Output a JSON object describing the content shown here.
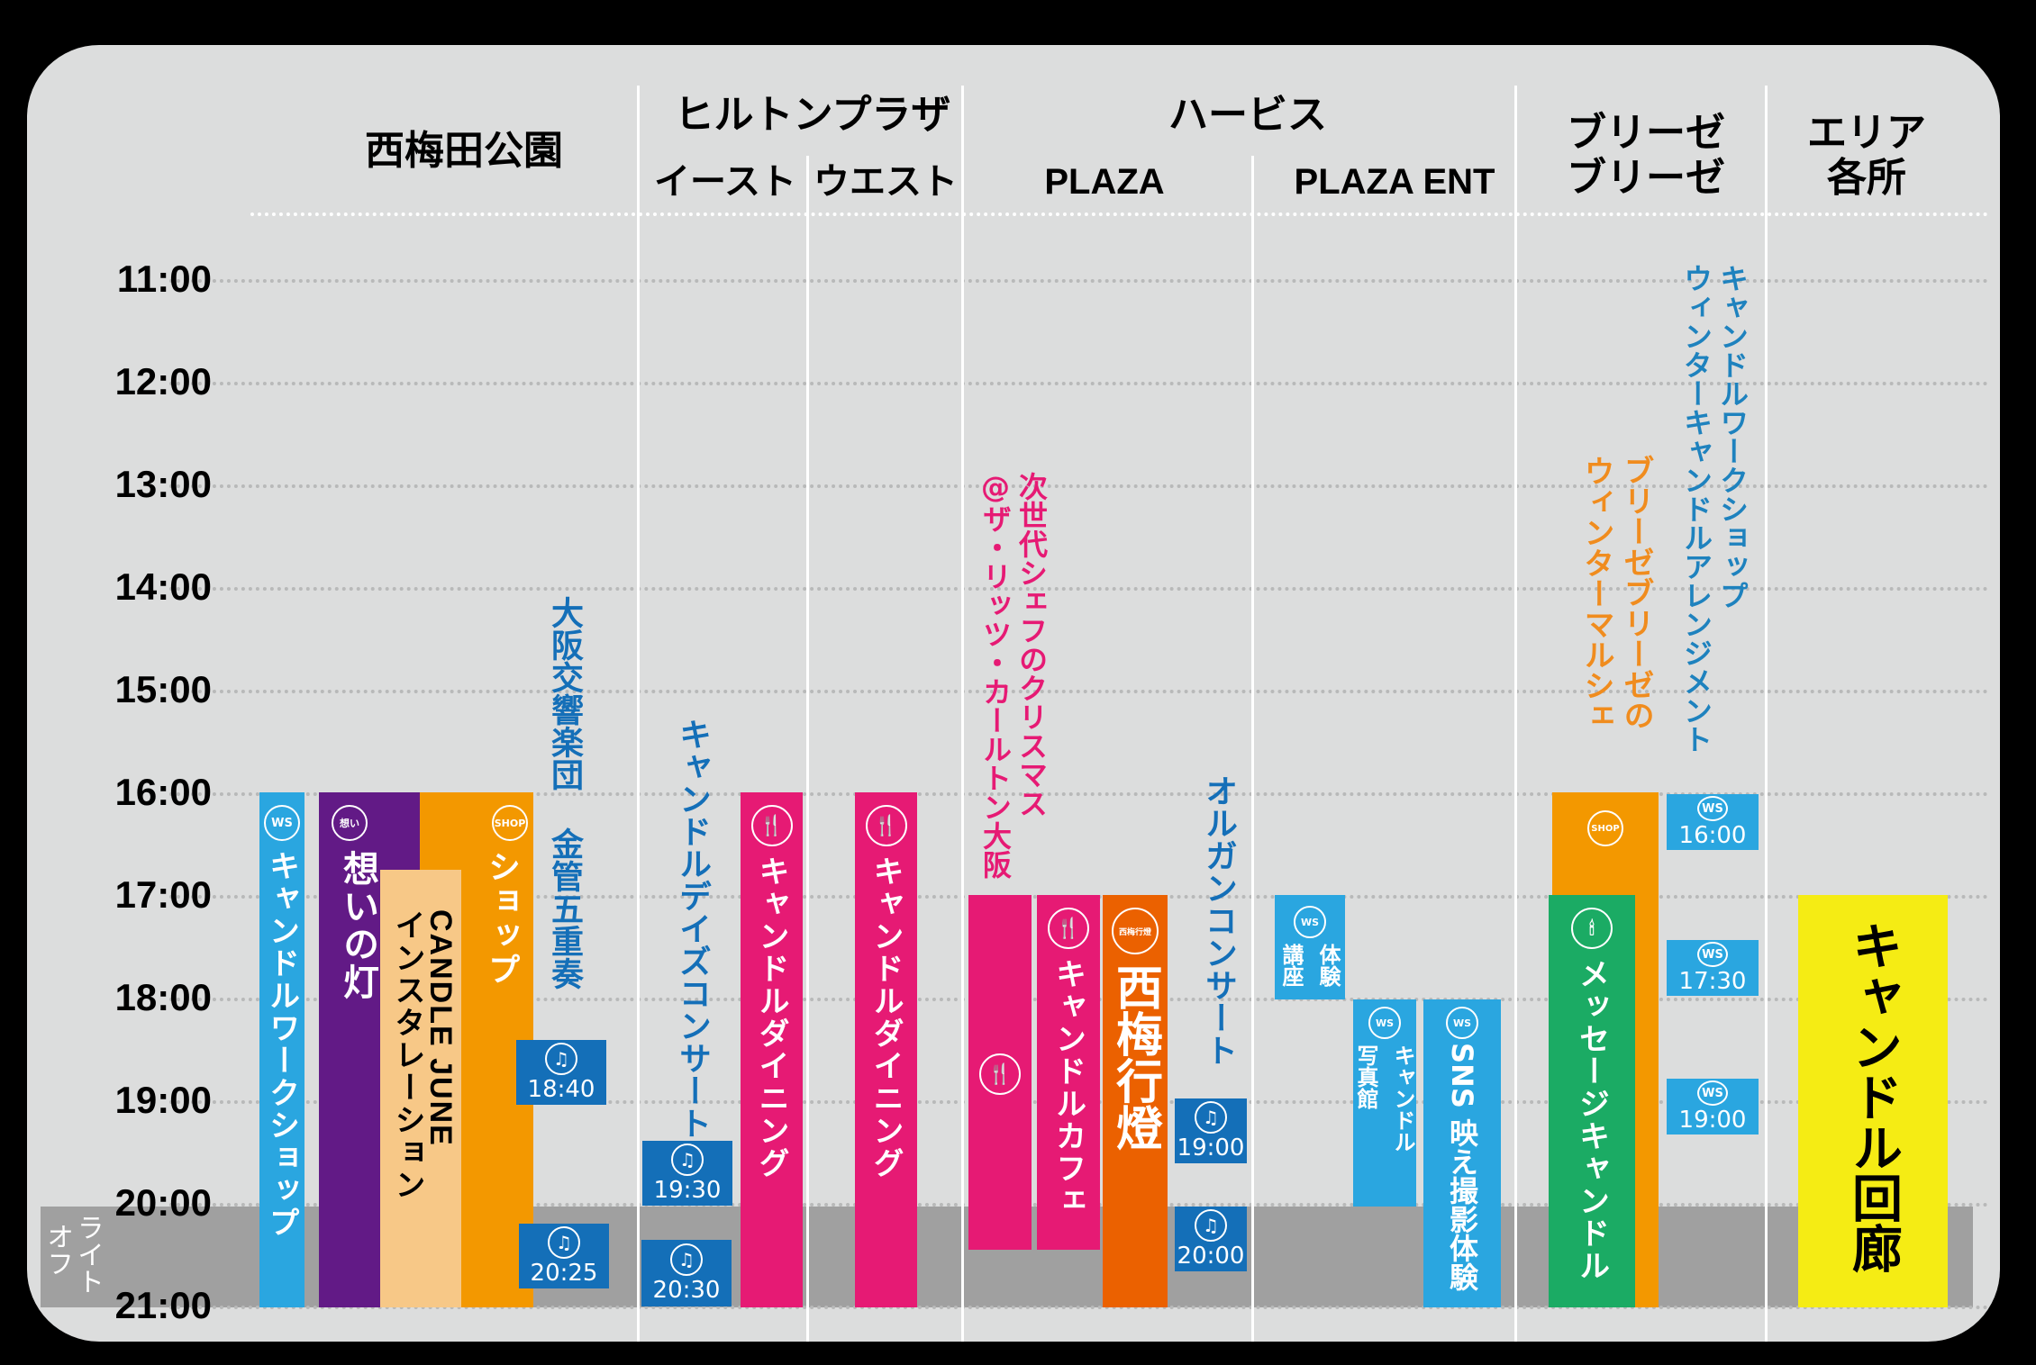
{
  "colors": {
    "background": "#000000",
    "panel": "#dcdddd",
    "light_off_band": "#a0a0a0",
    "workshop_blue": "#2aa6e0",
    "music_blue": "#146fb8",
    "dining_pink": "#e61a74",
    "purple": "#621a86",
    "shop_orange": "#f39800",
    "peach": "#f7c887",
    "lantern_orange": "#eb6100",
    "green": "#1bab64",
    "yellow": "#f5ec14",
    "label_pink": "#e61a74",
    "label_blue": "#146fb8",
    "label_orange": "#f08c1e",
    "label_steel_blue": "#1e82be"
  },
  "header": {
    "nishiumeda_park": "西梅田公園",
    "hilton_plaza": "ヒルトンプラザ",
    "hilton_east": "イースト",
    "hilton_west": "ウエスト",
    "herbis": "ハービス",
    "herbis_plaza": "PLAZA",
    "herbis_plaza_ent": "PLAZA ENT",
    "breeze_line1": "ブリーゼ",
    "breeze_line2": "ブリーゼ",
    "area_line1": "エリア",
    "area_line2": "各所"
  },
  "time_axis": [
    "11:00",
    "12:00",
    "13:00",
    "14:00",
    "15:00",
    "16:00",
    "17:00",
    "18:00",
    "19:00",
    "20:00",
    "21:00"
  ],
  "light_off": {
    "label": "ライトオフ",
    "line1": "ライト",
    "line2": "オフ",
    "start": "20:00",
    "end": "21:00"
  },
  "icons": {
    "ws": "WS",
    "shop": "SHOP",
    "music": "♫",
    "dining": "fork-spoon",
    "omoi": "想い",
    "lantern_bag": "西梅行燈",
    "candle": "candle-drop"
  },
  "events": {
    "candle_workshop_park": {
      "label": "キャンドルワークショップ",
      "icon": "WS",
      "start": "16:00",
      "end": "21:00"
    },
    "omoi_no_akari": {
      "label": "想いの灯",
      "start": "16:00",
      "end": "21:00"
    },
    "candle_june": {
      "label_line1": "CANDLE JUNE",
      "label_line2": "インスタレーション",
      "start": "16:45",
      "end": "21:00"
    },
    "shop_park": {
      "label": "ショップ",
      "icon": "SHOP",
      "start": "16:00",
      "end": "21:00"
    },
    "osaka_brass": {
      "label": "大阪交響楽団 金管五重奏",
      "times": [
        "18:40",
        "20:25"
      ]
    },
    "candle_days_concert": {
      "label": "キャンドルデイズコンサート",
      "times": [
        "19:30",
        "20:30"
      ]
    },
    "candle_dining_east": {
      "label": "キャンドルダイニング",
      "start": "16:00",
      "end": "21:00"
    },
    "candle_dining_west": {
      "label": "キャンドルダイニング",
      "start": "16:00",
      "end": "21:00"
    },
    "ritz_christmas": {
      "line1": "次世代シェフのクリスマス",
      "line2": "@ザ・リッツ・カールトン大阪",
      "start": "17:00",
      "end": "20:25"
    },
    "candle_cafe": {
      "label": "キャンドルカフェ",
      "start": "17:00",
      "end": "20:25"
    },
    "nishiume_andon": {
      "label": "西梅行燈",
      "start": "17:00",
      "end": "21:00"
    },
    "organ_concert": {
      "label": "オルガンコンサート",
      "times": [
        "19:00",
        "20:00"
      ]
    },
    "lecture": {
      "line1": "体験",
      "line2": "講座",
      "icon": "WS",
      "start": "17:00",
      "end": "18:00"
    },
    "candle_photo_studio": {
      "line1": "キャンドル",
      "line2": "写真館",
      "icon": "WS",
      "start": "18:00",
      "end": "20:00"
    },
    "sns_photo": {
      "label": "SNS 映え撮影体験",
      "icon": "WS",
      "start": "18:00",
      "end": "21:00"
    },
    "breeze_marche": {
      "line1": "ブリーゼブリーゼの",
      "line2": "ウィンターマルシェ",
      "icon": "SHOP",
      "start": "16:00",
      "end": "21:00"
    },
    "message_candle": {
      "label": "メッセージキャンドル",
      "start": "17:00",
      "end": "21:00"
    },
    "winter_candle_ws": {
      "line1": "キャンドルワークショップ",
      "line2": "ウィンターキャンドルアレンジメント",
      "times": [
        "16:00",
        "17:30",
        "19:00"
      ]
    },
    "candle_corridor": {
      "label": "キャンドル回廊",
      "start": "17:00",
      "end": "21:00"
    }
  }
}
